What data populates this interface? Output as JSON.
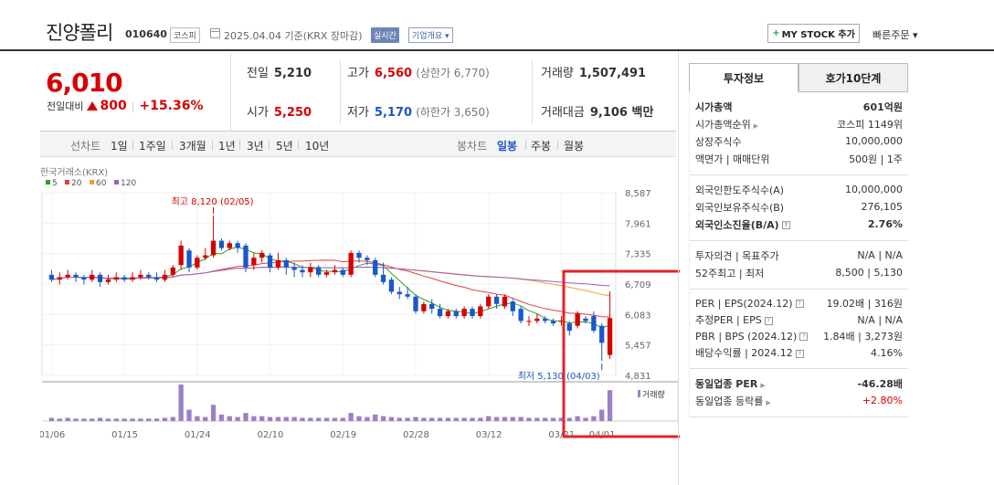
{
  "header": {
    "stock_name": "진양폴리",
    "stock_code": "010640",
    "market": "코스피",
    "date_text": "2025.04.04  기준(KRX 장마감)",
    "realtime_label": "실시간",
    "company_label": "기업개요 ▾",
    "mystock_label": "MY STOCK 추가",
    "quick_order_label": "빠른주문 ▾"
  },
  "price": {
    "current": "6,010",
    "change_label": "전일대비",
    "change_amount": "800",
    "change_rate": "+15.36%"
  },
  "summary": {
    "prev_label": "전일",
    "prev_value": "5,210",
    "high_label": "고가",
    "high_value": "6,560",
    "upper_limit": "(상한가 6,770)",
    "volume_label": "거래량",
    "volume_value": "1,507,491",
    "open_label": "시가",
    "open_value": "5,250",
    "low_label": "저가",
    "low_value": "5,170",
    "lower_limit": "(하한가 3,650)",
    "amount_label": "거래대금",
    "amount_value": "9,106 백만"
  },
  "periods": {
    "line_label": "선차트",
    "line_items": [
      "1일",
      "1주일",
      "3개월",
      "1년",
      "3년",
      "5년",
      "10년"
    ],
    "candle_label": "봉차트",
    "candle_items": [
      "일봉",
      "주봉",
      "월봉"
    ],
    "active_candle": "일봉"
  },
  "chart_data": {
    "type": "candlestick",
    "title": "한국거래소(KRX)",
    "legend": [
      {
        "name": "5",
        "color": "#2ca02c"
      },
      {
        "name": "20",
        "color": "#e04040"
      },
      {
        "name": "60",
        "color": "#f0a030"
      },
      {
        "name": "120",
        "color": "#9a60c8"
      }
    ],
    "y_ticks": [
      "8,587",
      "7,961",
      "7,335",
      "6,709",
      "6,083",
      "5,457",
      "4,831"
    ],
    "ylim": [
      4831,
      8587
    ],
    "x_ticks": [
      "01/06",
      "01/15",
      "01/24",
      "02/10",
      "02/19",
      "02/28",
      "03/12",
      "03/21",
      "04/01"
    ],
    "high_annotation": "최고 8,120 (02/05)",
    "low_annotation": "최저 5,130 (04/03)",
    "volume_label": "거래량",
    "candles": [
      [
        6900,
        6800,
        7000,
        6750
      ],
      [
        6800,
        6850,
        6950,
        6700
      ],
      [
        6850,
        6900,
        7000,
        6800
      ],
      [
        6900,
        6850,
        6950,
        6750
      ],
      [
        6850,
        6800,
        6900,
        6700
      ],
      [
        6800,
        6900,
        7000,
        6750
      ],
      [
        6900,
        6750,
        6950,
        6650
      ],
      [
        6750,
        6800,
        6900,
        6700
      ],
      [
        6800,
        6850,
        6950,
        6750
      ],
      [
        6850,
        6800,
        6900,
        6750
      ],
      [
        6800,
        6850,
        6950,
        6750
      ],
      [
        6850,
        6900,
        7000,
        6800
      ],
      [
        6900,
        6850,
        6950,
        6800
      ],
      [
        6850,
        6800,
        6950,
        6750
      ],
      [
        6800,
        6900,
        7000,
        6750
      ],
      [
        6900,
        7050,
        7100,
        6850
      ],
      [
        7100,
        7500,
        7600,
        7000
      ],
      [
        7400,
        7050,
        7450,
        6950
      ],
      [
        7050,
        7250,
        7300,
        7000
      ],
      [
        7250,
        7300,
        7450,
        7200
      ],
      [
        7300,
        7600,
        8120,
        7250
      ],
      [
        7600,
        7450,
        7650,
        7400
      ],
      [
        7450,
        7550,
        7600,
        7400
      ],
      [
        7550,
        7450,
        7600,
        7350
      ],
      [
        7500,
        7050,
        7550,
        6950
      ],
      [
        7100,
        7250,
        7350,
        7000
      ],
      [
        7250,
        7350,
        7400,
        7150
      ],
      [
        7300,
        7050,
        7350,
        6950
      ],
      [
        7050,
        7200,
        7350,
        7000
      ],
      [
        7200,
        7050,
        7250,
        6900
      ],
      [
        7050,
        7000,
        7150,
        6850
      ],
      [
        7000,
        6950,
        7100,
        6850
      ],
      [
        6950,
        7050,
        7150,
        6850
      ],
      [
        7050,
        6900,
        7100,
        6850
      ],
      [
        6900,
        6950,
        7000,
        6850
      ],
      [
        6950,
        7000,
        7100,
        6900
      ],
      [
        7000,
        6900,
        7050,
        6850
      ],
      [
        6900,
        7350,
        7400,
        6850
      ],
      [
        7350,
        7250,
        7400,
        7150
      ],
      [
        7250,
        7200,
        7300,
        7100
      ],
      [
        7200,
        6900,
        7250,
        6850
      ],
      [
        6900,
        6750,
        7150,
        6700
      ],
      [
        6800,
        6550,
        6850,
        6500
      ],
      [
        6550,
        6500,
        6650,
        6400
      ],
      [
        6500,
        6450,
        6650,
        6400
      ],
      [
        6450,
        6150,
        6500,
        6100
      ],
      [
        6150,
        6300,
        6350,
        6100
      ],
      [
        6300,
        6200,
        6400,
        6100
      ],
      [
        6200,
        6050,
        6300,
        6000
      ],
      [
        6050,
        6150,
        6200,
        6000
      ],
      [
        6150,
        6050,
        6200,
        6000
      ],
      [
        6050,
        6200,
        6250,
        6000
      ],
      [
        6200,
        6050,
        6250,
        6000
      ],
      [
        6050,
        6250,
        6300,
        6000
      ],
      [
        6250,
        6450,
        6500,
        6200
      ],
      [
        6450,
        6300,
        6500,
        6200
      ],
      [
        6250,
        6450,
        6500,
        6200
      ],
      [
        6350,
        6150,
        6400,
        6050
      ],
      [
        6200,
        5950,
        6250,
        5900
      ],
      [
        5950,
        5950,
        6050,
        5850
      ],
      [
        5950,
        6000,
        6100,
        5900
      ],
      [
        6000,
        5950,
        6050,
        5900
      ],
      [
        5950,
        5900,
        6000,
        5850
      ],
      [
        5950,
        5950,
        6050,
        5850
      ],
      [
        5900,
        5750,
        5950,
        5650
      ],
      [
        5850,
        6100,
        6150,
        5800
      ],
      [
        6000,
        5950,
        6050,
        5900
      ],
      [
        6050,
        5750,
        6150,
        5700
      ],
      [
        5850,
        5500,
        5900,
        5130
      ],
      [
        5250,
        6010,
        6560,
        5170
      ]
    ],
    "volumes": [
      4,
      3,
      4,
      3,
      3,
      3,
      4,
      3,
      3,
      3,
      3,
      3,
      3,
      3,
      4,
      5,
      45,
      14,
      6,
      5,
      20,
      8,
      6,
      5,
      10,
      6,
      6,
      5,
      5,
      5,
      5,
      4,
      4,
      4,
      4,
      4,
      4,
      10,
      6,
      5,
      8,
      6,
      5,
      4,
      4,
      5,
      4,
      4,
      4,
      4,
      4,
      4,
      4,
      4,
      6,
      5,
      5,
      5,
      5,
      4,
      4,
      4,
      4,
      4,
      4,
      6,
      4,
      6,
      14,
      38
    ]
  },
  "side": {
    "tab_invest": "투자정보",
    "tab_order": "호가10단계",
    "market_cap_label": "시가총액",
    "market_cap_value": "601억원",
    "cap_rank_label": "시가총액순위",
    "cap_rank_value": "코스피 1149위",
    "shares_label": "상장주식수",
    "shares_value": "10,000,000",
    "par_label": "액면가 | 매매단위",
    "par_value": "500원 | 1주",
    "foreign_limit_label": "외국인한도주식수(A)",
    "foreign_limit_value": "10,000,000",
    "foreign_hold_label": "외국인보유주식수(B)",
    "foreign_hold_value": "276,105",
    "foreign_rate_label": "외국인소진율(B/A)",
    "foreign_rate_value": "2.76%",
    "opinion_label": "투자의견 | 목표주가",
    "opinion_value": "N/A | N/A",
    "week52_label": "52주최고 | 최저",
    "week52_value": "8,500 | 5,130",
    "per_label": "PER | EPS(2024.12)",
    "per_value": "19.02배 | 316원",
    "est_per_label": "추정PER | EPS",
    "est_per_value": "N/A | N/A",
    "pbr_label": "PBR | BPS (2024.12)",
    "pbr_value": "1.84배 | 3,273원",
    "div_label": "배당수익률 | 2024.12",
    "div_value": "4.16%",
    "ind_per_label": "동일업종 PER",
    "ind_per_value": "-46.28배",
    "ind_rate_label": "동일업종 등락률",
    "ind_rate_value": "+2.80%"
  },
  "colors": {
    "up": "#d60000",
    "down": "#1a58c9",
    "highlight_box": "#e0242b"
  }
}
